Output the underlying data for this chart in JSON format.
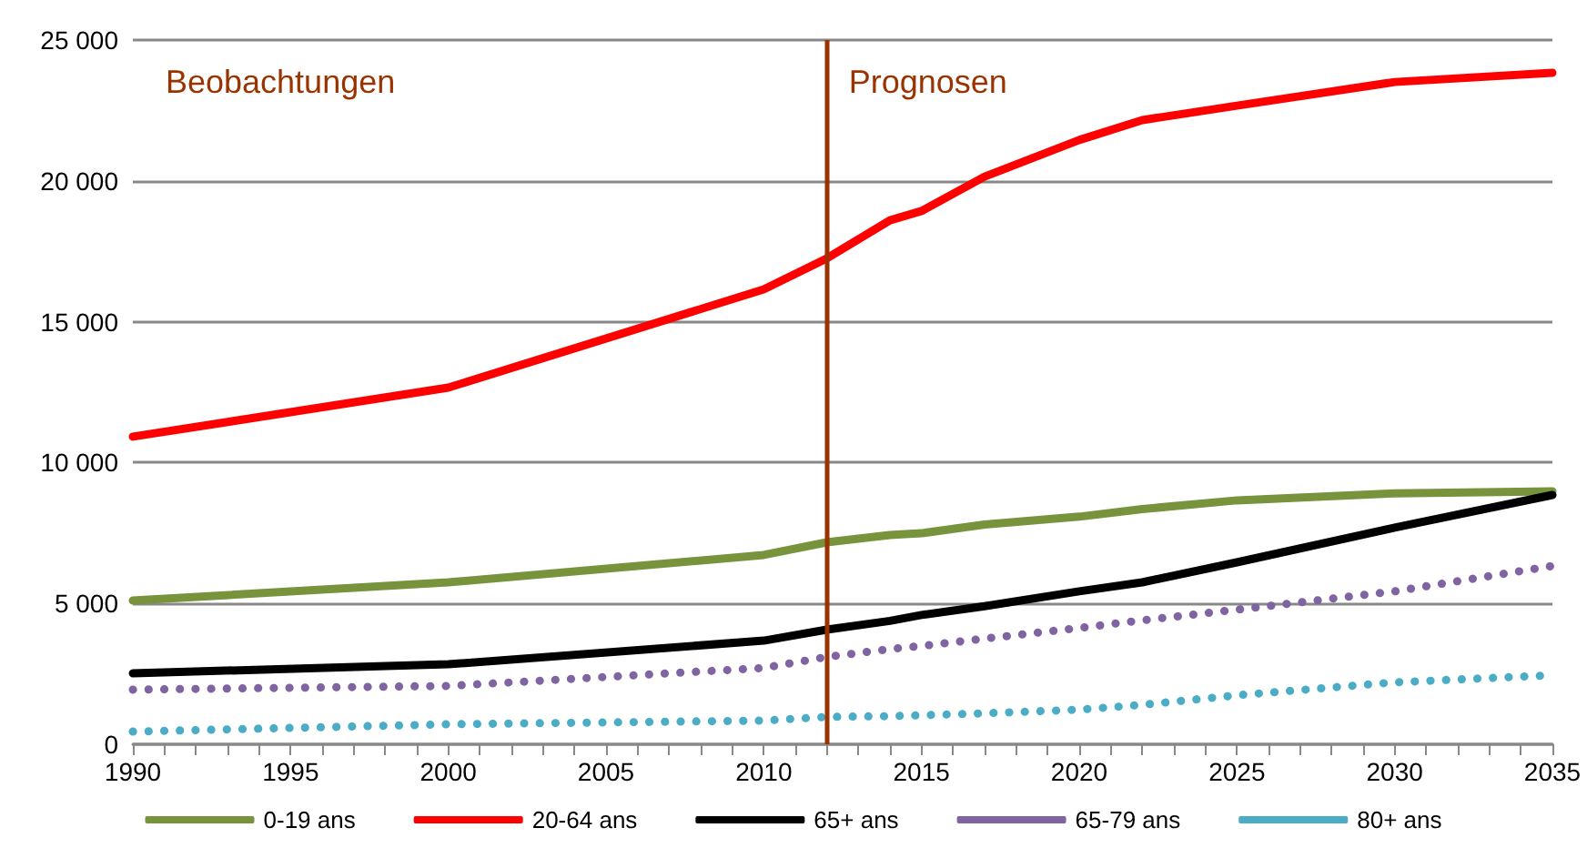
{
  "chart_data": {
    "type": "line",
    "x": [
      1990,
      2000,
      2010,
      2012,
      2014,
      2015,
      2017,
      2020,
      2022,
      2025,
      2030,
      2035
    ],
    "series": [
      {
        "name": "0-19 ans",
        "color": "#77933c",
        "line_style": "solid",
        "values": [
          5100,
          5750,
          6720,
          7170,
          7430,
          7490,
          7800,
          8080,
          8350,
          8660,
          8910,
          8980
        ]
      },
      {
        "name": "20-64 ans",
        "color": "#ff0000",
        "line_style": "solid",
        "values": [
          10920,
          12660,
          16150,
          17250,
          18600,
          18930,
          20150,
          21450,
          22160,
          22670,
          23510,
          23840
        ]
      },
      {
        "name": "65+ ans",
        "color": "#000000",
        "line_style": "solid",
        "values": [
          2520,
          2840,
          3680,
          4070,
          4380,
          4590,
          4900,
          5430,
          5750,
          6460,
          7690,
          8850
        ]
      },
      {
        "name": "65-79 ans",
        "color": "#8064a2",
        "line_style": "dotted",
        "values": [
          1940,
          2070,
          2710,
          3100,
          3380,
          3490,
          3750,
          4130,
          4400,
          4780,
          5430,
          6330
        ]
      },
      {
        "name": "80+ ans",
        "color": "#4bacc6",
        "line_style": "dotted",
        "values": [
          450,
          710,
          840,
          970,
          1000,
          1030,
          1100,
          1230,
          1400,
          1740,
          2200,
          2450
        ]
      }
    ],
    "xlim": [
      1990,
      2035
    ],
    "xticks": [
      1990,
      1995,
      2000,
      2005,
      2010,
      2015,
      2020,
      2025,
      2030,
      2035
    ],
    "ylim": [
      0,
      25000
    ],
    "yticks": [
      0,
      {
        "value": 5000,
        "label": "5 000"
      },
      {
        "value": 10000,
        "label": "10 000"
      },
      {
        "value": 15000,
        "label": "15 000"
      },
      {
        "value": 20000,
        "label": "20 000"
      },
      {
        "value": 25000,
        "label": "25 000"
      }
    ],
    "grid": "y",
    "legend": "bottom",
    "marker": "none",
    "ref_lines": [
      {
        "axis": "x",
        "value": 2012,
        "color": "#993300"
      }
    ],
    "annotations": [
      "Beobachtungen",
      "Prognosen"
    ]
  }
}
